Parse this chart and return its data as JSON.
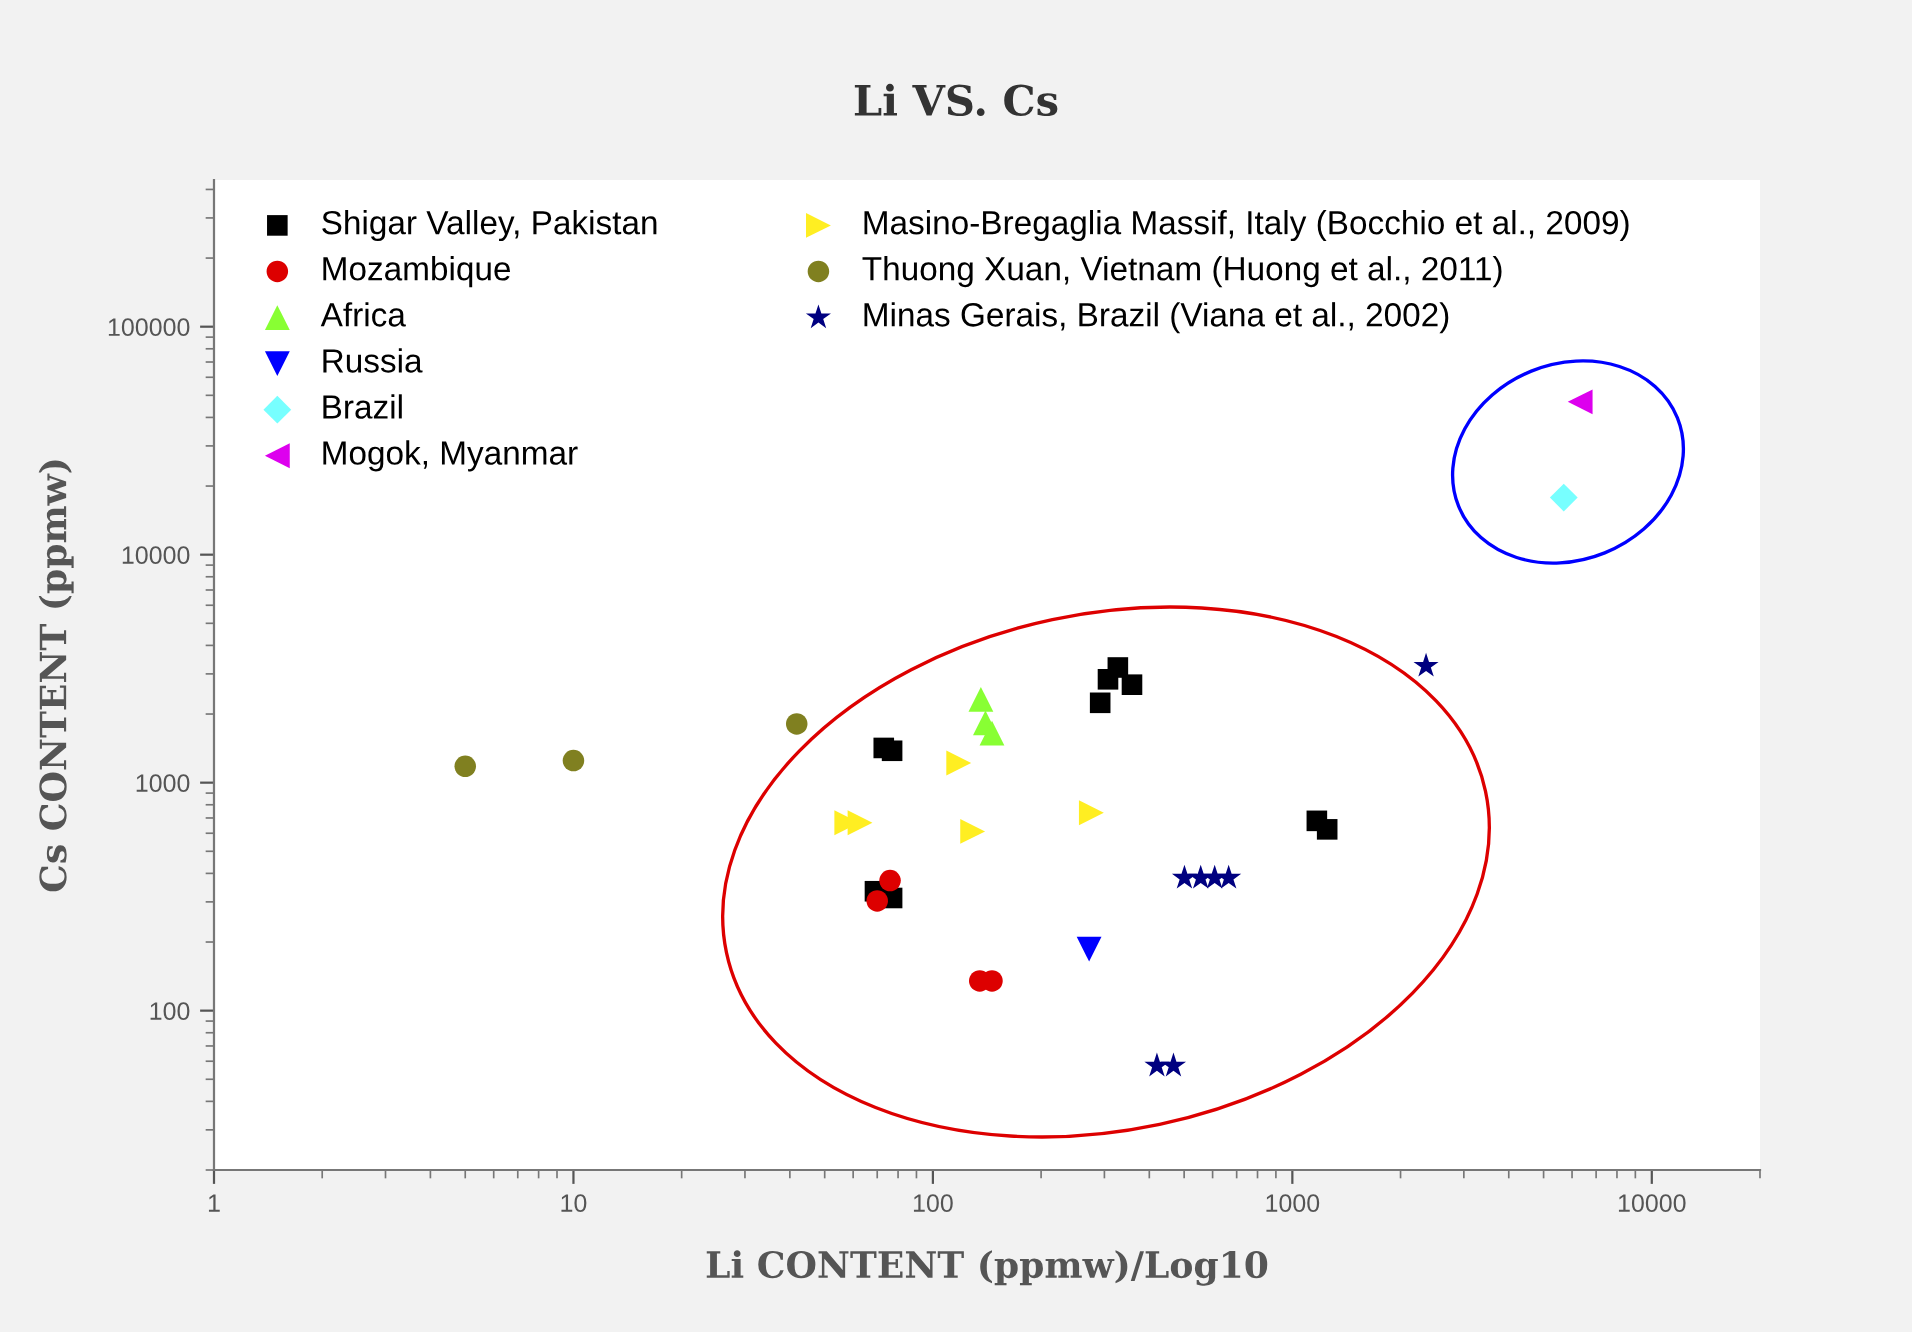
{
  "chart_data": {
    "type": "scatter",
    "title": "Li VS. Cs",
    "xlabel": "Li CONTENT (ppmw)/Log10",
    "ylabel": "Cs CONTENT (ppmw)",
    "log": "xy",
    "xlim": [
      1,
      20000
    ],
    "ylim": [
      20,
      440000
    ],
    "xticks": [
      1,
      10,
      100,
      1000,
      10000
    ],
    "yticks": [
      100,
      1000,
      10000,
      100000
    ],
    "grid": false,
    "legend": "top left",
    "series": [
      {
        "name": "Shigar Valley, Pakistan",
        "color": "#000000",
        "marker": "square",
        "x": [
          327,
          307,
          358,
          292,
          73,
          77,
          69,
          77,
          1170,
          1250
        ],
        "values": [
          3200,
          2840,
          2690,
          2240,
          1420,
          1380,
          334,
          312,
          680,
          624
        ]
      },
      {
        "name": "Mozambique",
        "color": "#dd0000",
        "marker": "circle",
        "x": [
          76,
          70,
          135,
          146
        ],
        "values": [
          372,
          303,
          135,
          135
        ]
      },
      {
        "name": "Africa",
        "color": "#88ff33",
        "marker": "triangle",
        "x": [
          136,
          140,
          146
        ],
        "values": [
          2320,
          1830,
          1650
        ]
      },
      {
        "name": "Russia",
        "color": "#0000ff",
        "marker": "triangle_down",
        "x": [
          272
        ],
        "values": [
          186
        ]
      },
      {
        "name": "Brazil",
        "color": "#77ffff",
        "marker": "diamond",
        "x": [
          5690
        ],
        "values": [
          17800
        ]
      },
      {
        "name": "Mogok, Myanmar",
        "color": "#dd00ee",
        "marker": "triangle_left",
        "x": [
          6320
        ],
        "values": [
          46800
        ]
      },
      {
        "name": "Masino-Bregaglia Massif, Italy (Bocchio et al., 2009)",
        "color": "#ffee22",
        "marker": "triangle_right",
        "x": [
          118,
          57.6,
          62.7,
          129,
          276
        ],
        "values": [
          1220,
          667,
          667,
          611,
          738
        ]
      },
      {
        "name": "Thuong Xuan, Vietnam (Huong et al., 2011)",
        "color": "#808020",
        "marker": "circle",
        "x": [
          5,
          10,
          41.8
        ],
        "values": [
          1180,
          1250,
          1810
        ]
      },
      {
        "name": "Minas Gerais, Brazil (Viana et al., 2002)",
        "color": "#000080",
        "marker": "star",
        "x": [
          2355,
          501,
          556,
          608,
          665,
          420,
          467
        ],
        "values": [
          3250,
          382,
          382,
          382,
          382,
          57.3,
          57.3
        ]
      }
    ]
  }
}
